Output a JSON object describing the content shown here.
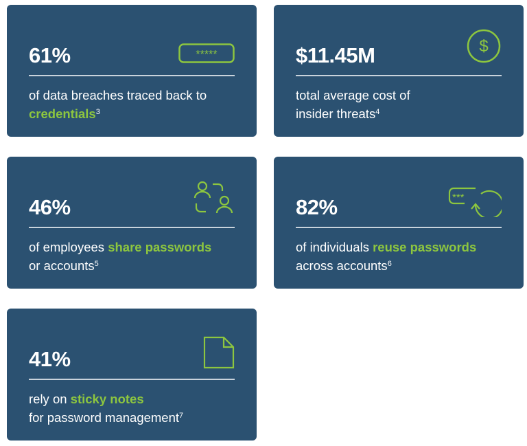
{
  "colors": {
    "card": "#2b5171",
    "accent": "#8dc63f"
  },
  "cards": [
    {
      "stat": "61%",
      "pre": "of data breaches traced back to ",
      "hl": "credentials",
      "post": "",
      "sup": "3",
      "icon": "password-field-icon",
      "icon_text": "*****"
    },
    {
      "stat": "$11.45M",
      "pre": "total average cost of insider threats",
      "hl": "",
      "post": "",
      "sup": "4",
      "icon": "dollar-circle-icon"
    },
    {
      "stat": "46%",
      "pre": "of employees ",
      "hl": "share passwords",
      "post": " or accounts",
      "sup": "5",
      "icon": "people-share-icon"
    },
    {
      "stat": "82%",
      "pre": "of individuals ",
      "hl": "reuse passwords",
      "post": " across accounts",
      "sup": "6",
      "icon": "password-reuse-icon",
      "icon_text": "***"
    },
    {
      "stat": "41%",
      "pre": "rely on ",
      "hl": "sticky notes",
      "post": " for password management",
      "sup": "7",
      "icon": "sticky-note-icon"
    }
  ]
}
